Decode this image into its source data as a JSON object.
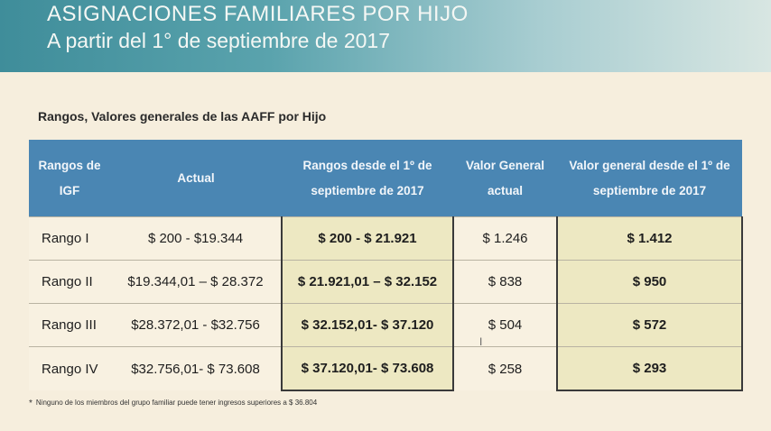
{
  "header": {
    "title": "ASIGNACIONES FAMILIARES POR HIJO",
    "subtitle": "A partir del 1° de septiembre de 2017"
  },
  "section_title": "Rangos, Valores generales de las AAFF por Hijo",
  "table": {
    "headers": [
      "Rangos de IGF",
      "Actual",
      "Rangos desde el 1º de septiembre de 2017",
      "Valor General actual",
      "Valor general desde el 1º de septiembre de 2017"
    ],
    "rows": [
      [
        "Rango I",
        "$ 200 - $19.344",
        "$ 200 - $ 21.921",
        "$ 1.246",
        "$ 1.412"
      ],
      [
        "Rango II",
        "$19.344,01 – $ 28.372",
        "$ 21.921,01 – $ 32.152",
        "$ 838",
        "$ 950"
      ],
      [
        "Rango III",
        "$28.372,01 - $32.756",
        "$ 32.152,01- $ 37.120",
        "$ 504",
        "$ 572"
      ],
      [
        "Rango IV",
        "$32.756,01- $ 73.608",
        "$ 37.120,01- $ 73.608",
        "$ 258",
        "$ 293"
      ]
    ]
  },
  "footnote": {
    "marker": "*",
    "text": "Ninguno de los miembros del grupo familiar puede tener ingresos superiores a $ 36.804"
  },
  "colors": {
    "header_bg": "#4a86b3",
    "highlight_bg": "#ede8c2",
    "page_bg": "#f6eedd"
  }
}
